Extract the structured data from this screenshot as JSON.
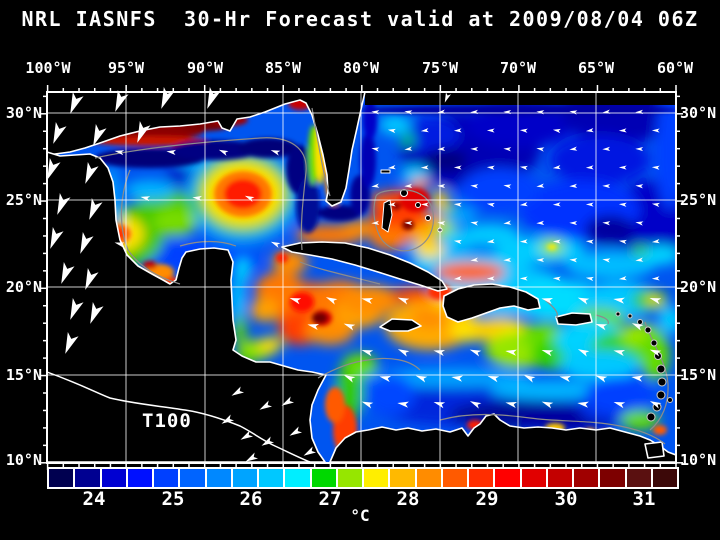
{
  "title": "NRL IASNFS  30-Hr Forecast valid at 2009/08/04 06Z",
  "map": {
    "field_label": "T100",
    "longitude_ticks": [
      "100°W",
      "95°W",
      "90°W",
      "85°W",
      "80°W",
      "75°W",
      "70°W",
      "65°W",
      "60°W"
    ],
    "latitude_ticks_left": [
      "30°N",
      "25°N",
      "20°N",
      "15°N",
      "10°N"
    ],
    "latitude_ticks_right": [
      "30°N",
      "25°N",
      "20°N",
      "15°N",
      "10°N"
    ]
  },
  "colorbar": {
    "unit": "°C",
    "tick_labels": [
      "24",
      "25",
      "26",
      "27",
      "28",
      "29",
      "30",
      "31"
    ],
    "cell_colors": [
      "#000050",
      "#000091",
      "#0000d2",
      "#0010ff",
      "#0040ff",
      "#0064ff",
      "#0088ff",
      "#00a4ff",
      "#00c8ff",
      "#00eeff",
      "#00d800",
      "#96e600",
      "#ffee00",
      "#ffb900",
      "#ff8c00",
      "#ff5a00",
      "#ff2d00",
      "#ff0000",
      "#e10000",
      "#c30000",
      "#a00000",
      "#7d0000",
      "#5a1010",
      "#3c0808"
    ]
  },
  "chart_data": {
    "type": "heatmap",
    "title": "NRL IASNFS 30-Hr Forecast valid at 2009/08/04 06Z",
    "variable_label": "T100",
    "unit": "°C",
    "x_ticks": [
      "100°W",
      "95°W",
      "90°W",
      "85°W",
      "80°W",
      "75°W",
      "70°W",
      "65°W",
      "60°W"
    ],
    "y_ticks": [
      "30°N",
      "25°N",
      "20°N",
      "15°N",
      "10°N"
    ],
    "colorbar_ticks": [
      24,
      25,
      26,
      27,
      28,
      29,
      30,
      31
    ],
    "palette_colors": [
      "#000050",
      "#000091",
      "#0000d2",
      "#0010ff",
      "#0040ff",
      "#0064ff",
      "#0088ff",
      "#00a4ff",
      "#00c8ff",
      "#00eeff",
      "#00d800",
      "#96e600",
      "#ffee00",
      "#ffb900",
      "#ff8c00",
      "#ff5a00",
      "#ff2d00",
      "#ff0000",
      "#e10000",
      "#c30000",
      "#a00000",
      "#7d0000",
      "#5a1010",
      "#3c0808"
    ]
  }
}
